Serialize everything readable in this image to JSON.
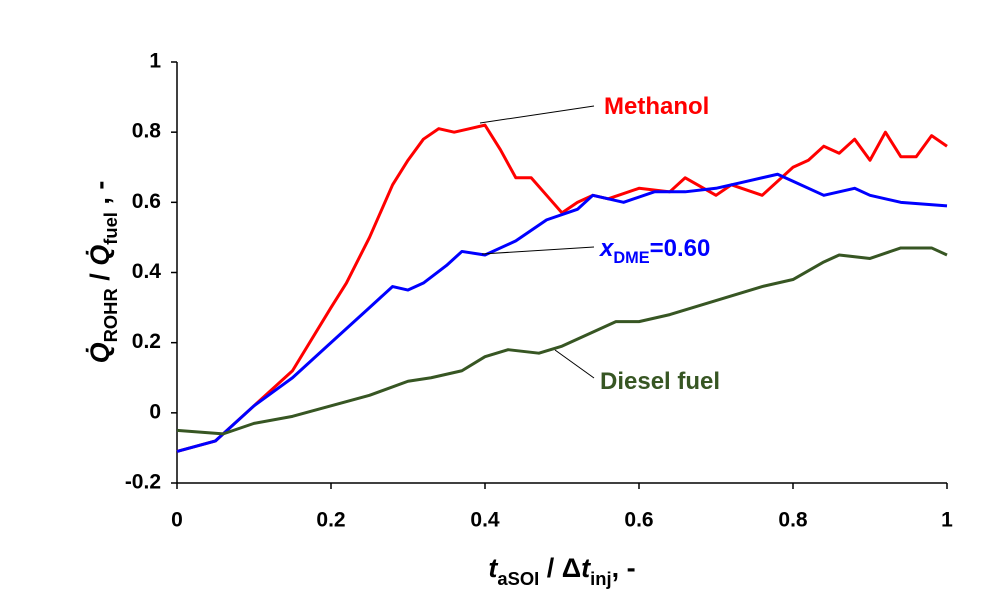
{
  "chart_data": {
    "type": "line",
    "xlabel": [
      {
        "text": "t",
        "italic": true
      },
      {
        "text": "aSOI",
        "sub": true
      },
      {
        "text": " / Δ"
      },
      {
        "text": "t",
        "italic": true
      },
      {
        "text": "inj",
        "sub": true
      },
      {
        "text": ", -"
      }
    ],
    "ylabel": [
      {
        "text": "Q̇",
        "italic": true
      },
      {
        "text": "ROHR",
        "sub": true
      },
      {
        "text": " / "
      },
      {
        "text": "Q̇",
        "italic": true
      },
      {
        "text": "fuel",
        "sub": true
      },
      {
        "text": " , -"
      }
    ],
    "xlim": [
      0,
      1
    ],
    "xticks": [
      0,
      0.2,
      0.4,
      0.6,
      0.8,
      1
    ],
    "ylim": [
      -0.2,
      1
    ],
    "yticks": [
      -0.2,
      0,
      0.2,
      0.4,
      0.6,
      0.8,
      1
    ],
    "series": [
      {
        "name": [
          {
            "text": "Methanol"
          }
        ],
        "color": "#ff0000",
        "x": [
          0,
          0.05,
          0.1,
          0.15,
          0.2,
          0.22,
          0.25,
          0.28,
          0.3,
          0.32,
          0.34,
          0.36,
          0.38,
          0.4,
          0.42,
          0.44,
          0.46,
          0.48,
          0.5,
          0.52,
          0.54,
          0.56,
          0.6,
          0.64,
          0.66,
          0.7,
          0.72,
          0.76,
          0.8,
          0.82,
          0.84,
          0.86,
          0.88,
          0.9,
          0.92,
          0.94,
          0.96,
          0.98,
          1
        ],
        "values": [
          -0.11,
          -0.08,
          0.02,
          0.12,
          0.3,
          0.37,
          0.5,
          0.65,
          0.72,
          0.78,
          0.81,
          0.8,
          0.81,
          0.82,
          0.75,
          0.67,
          0.67,
          0.62,
          0.57,
          0.6,
          0.62,
          0.61,
          0.64,
          0.63,
          0.67,
          0.62,
          0.65,
          0.62,
          0.7,
          0.72,
          0.76,
          0.74,
          0.78,
          0.72,
          0.8,
          0.73,
          0.73,
          0.79,
          0.76
        ]
      },
      {
        "name": [
          {
            "text": "x",
            "italic": true
          },
          {
            "text": "DME",
            "sub": true
          },
          {
            "text": "=0.60"
          }
        ],
        "color": "#0000ff",
        "x": [
          0,
          0.05,
          0.1,
          0.15,
          0.2,
          0.25,
          0.28,
          0.3,
          0.32,
          0.35,
          0.37,
          0.4,
          0.44,
          0.48,
          0.52,
          0.54,
          0.58,
          0.62,
          0.66,
          0.7,
          0.74,
          0.78,
          0.8,
          0.84,
          0.88,
          0.9,
          0.94,
          1
        ],
        "values": [
          -0.11,
          -0.08,
          0.02,
          0.1,
          0.2,
          0.3,
          0.36,
          0.35,
          0.37,
          0.42,
          0.46,
          0.45,
          0.49,
          0.55,
          0.58,
          0.62,
          0.6,
          0.63,
          0.63,
          0.64,
          0.66,
          0.68,
          0.66,
          0.62,
          0.64,
          0.62,
          0.6,
          0.59
        ]
      },
      {
        "name": [
          {
            "text": "Diesel fuel"
          }
        ],
        "color": "#375623",
        "x": [
          0,
          0.06,
          0.1,
          0.15,
          0.2,
          0.25,
          0.3,
          0.33,
          0.37,
          0.4,
          0.43,
          0.47,
          0.5,
          0.53,
          0.57,
          0.6,
          0.64,
          0.7,
          0.76,
          0.8,
          0.84,
          0.86,
          0.9,
          0.94,
          0.98,
          1
        ],
        "values": [
          -0.05,
          -0.06,
          -0.03,
          -0.01,
          0.02,
          0.05,
          0.09,
          0.1,
          0.12,
          0.16,
          0.18,
          0.17,
          0.19,
          0.22,
          0.26,
          0.26,
          0.28,
          0.32,
          0.36,
          0.38,
          0.43,
          0.45,
          0.44,
          0.47,
          0.47,
          0.45
        ]
      }
    ]
  }
}
